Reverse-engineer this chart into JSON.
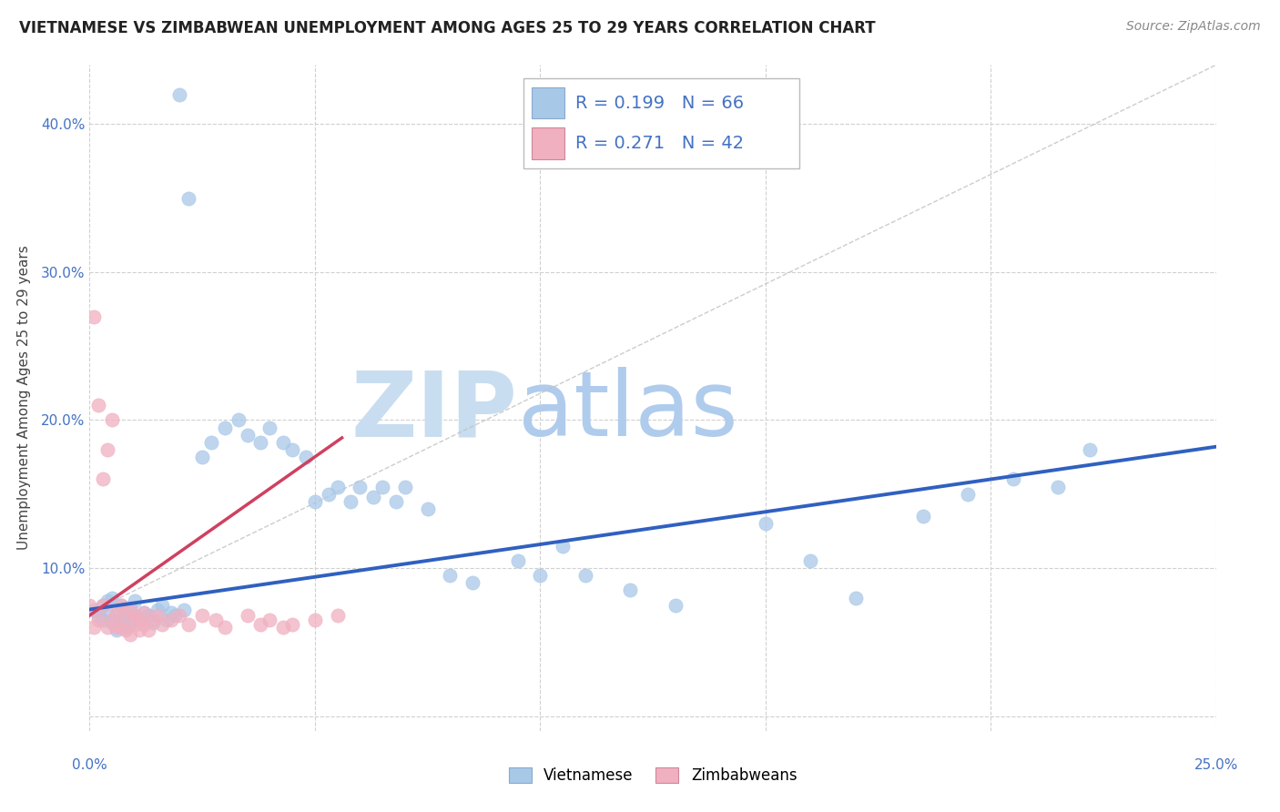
{
  "title": "VIETNAMESE VS ZIMBABWEAN UNEMPLOYMENT AMONG AGES 25 TO 29 YEARS CORRELATION CHART",
  "source": "Source: ZipAtlas.com",
  "ylabel": "Unemployment Among Ages 25 to 29 years",
  "xlim": [
    0.0,
    0.25
  ],
  "ylim": [
    -0.01,
    0.44
  ],
  "color_vietnamese": "#a8c8e8",
  "color_zimbabwean": "#f0b0c0",
  "color_trendline_vietnamese": "#3060c0",
  "color_trendline_zimbabwean": "#d04060",
  "color_refline": "#c0c0c0",
  "watermark_color": "#d8e8f4",
  "vietnamese_x": [
    0.001,
    0.002,
    0.003,
    0.003,
    0.004,
    0.004,
    0.005,
    0.005,
    0.006,
    0.006,
    0.007,
    0.007,
    0.008,
    0.008,
    0.009,
    0.009,
    0.01,
    0.01,
    0.011,
    0.012,
    0.013,
    0.014,
    0.015,
    0.016,
    0.017,
    0.018,
    0.019,
    0.02,
    0.021,
    0.022,
    0.025,
    0.027,
    0.03,
    0.033,
    0.035,
    0.038,
    0.04,
    0.043,
    0.045,
    0.048,
    0.05,
    0.053,
    0.055,
    0.058,
    0.06,
    0.063,
    0.065,
    0.068,
    0.07,
    0.075,
    0.08,
    0.085,
    0.095,
    0.1,
    0.105,
    0.11,
    0.12,
    0.13,
    0.15,
    0.16,
    0.17,
    0.185,
    0.195,
    0.205,
    0.215,
    0.222
  ],
  "vietnamese_y": [
    0.072,
    0.068,
    0.065,
    0.075,
    0.07,
    0.078,
    0.063,
    0.08,
    0.068,
    0.058,
    0.075,
    0.065,
    0.07,
    0.06,
    0.073,
    0.063,
    0.068,
    0.078,
    0.065,
    0.07,
    0.068,
    0.063,
    0.072,
    0.075,
    0.065,
    0.07,
    0.068,
    0.42,
    0.072,
    0.35,
    0.175,
    0.185,
    0.195,
    0.2,
    0.19,
    0.185,
    0.195,
    0.185,
    0.18,
    0.175,
    0.145,
    0.15,
    0.155,
    0.145,
    0.155,
    0.148,
    0.155,
    0.145,
    0.155,
    0.14,
    0.095,
    0.09,
    0.105,
    0.095,
    0.115,
    0.095,
    0.085,
    0.075,
    0.13,
    0.105,
    0.08,
    0.135,
    0.15,
    0.16,
    0.155,
    0.18
  ],
  "zimbabwean_x": [
    0.0,
    0.001,
    0.001,
    0.002,
    0.002,
    0.003,
    0.003,
    0.004,
    0.004,
    0.005,
    0.005,
    0.006,
    0.006,
    0.007,
    0.007,
    0.008,
    0.008,
    0.009,
    0.009,
    0.01,
    0.01,
    0.011,
    0.011,
    0.012,
    0.012,
    0.013,
    0.014,
    0.015,
    0.016,
    0.018,
    0.02,
    0.022,
    0.025,
    0.028,
    0.03,
    0.035,
    0.038,
    0.04,
    0.043,
    0.045,
    0.05,
    0.055
  ],
  "zimbabwean_y": [
    0.075,
    0.27,
    0.06,
    0.065,
    0.21,
    0.075,
    0.16,
    0.18,
    0.06,
    0.2,
    0.065,
    0.07,
    0.06,
    0.075,
    0.06,
    0.068,
    0.058,
    0.072,
    0.055,
    0.068,
    0.062,
    0.058,
    0.065,
    0.062,
    0.07,
    0.058,
    0.065,
    0.068,
    0.062,
    0.065,
    0.068,
    0.062,
    0.068,
    0.065,
    0.06,
    0.068,
    0.062,
    0.065,
    0.06,
    0.062,
    0.065,
    0.068
  ],
  "viet_trend_x0": 0.0,
  "viet_trend_x1": 0.25,
  "viet_trend_y0": 0.072,
  "viet_trend_y1": 0.182,
  "zimb_trend_x0": 0.0,
  "zimb_trend_x1": 0.056,
  "zimb_trend_y0": 0.068,
  "zimb_trend_y1": 0.188,
  "refline_x0": 0.0,
  "refline_x1": 0.25,
  "refline_y0": 0.07,
  "refline_y1": 0.44
}
